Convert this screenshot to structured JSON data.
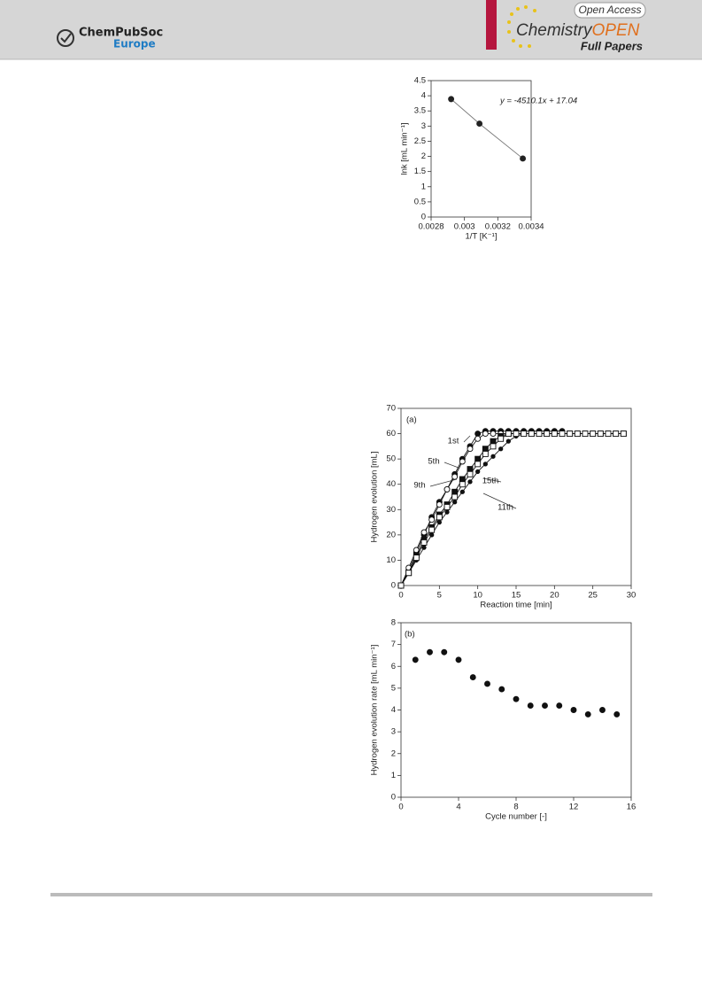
{
  "header": {
    "left_logo": [
      "ChemPubSoc",
      "Europe"
    ],
    "right_logo": {
      "badge": "Open Access",
      "title_a": "Chemistry",
      "title_b": "OPEN",
      "section": "Full Papers"
    }
  },
  "chart_data": [
    {
      "type": "line",
      "x": [
        0.00292,
        0.00309,
        0.00335
      ],
      "values": [
        3.89,
        3.08,
        1.93
      ],
      "color": "#222222",
      "line_color": "#777777",
      "marker": "circle",
      "annotation": "y = -4510.1x + 17.04",
      "x_label": "1/T [K⁻¹]",
      "y_label": "lnk [mL min⁻¹]",
      "xlim": [
        0.0028,
        0.0034
      ],
      "xticks": [
        0.0028,
        0.003,
        0.0032,
        0.0034
      ],
      "ylim": [
        0,
        4.5
      ],
      "yticks": [
        0,
        0.5,
        1,
        1.5,
        2,
        2.5,
        3,
        3.5,
        4,
        4.5
      ]
    },
    {
      "type": "line",
      "annotation": "(a)",
      "x_label": "Reaction time [min]",
      "y_label": "Hydrogen evolution [mL]",
      "x": [
        0,
        1,
        2,
        3,
        4,
        5,
        6,
        7,
        8,
        9,
        10,
        11,
        12,
        13,
        14,
        15,
        16,
        17,
        18,
        19,
        20,
        21,
        22,
        23,
        24,
        25,
        26,
        27,
        28,
        29
      ],
      "series": [
        {
          "name": "1st",
          "color": "#111111",
          "marker": "circle",
          "values": [
            0,
            6,
            13,
            20,
            27,
            33,
            38,
            44,
            50,
            55,
            60,
            61,
            61,
            61,
            61,
            61,
            61,
            61,
            61,
            61,
            61,
            61,
            null,
            null,
            null,
            null,
            null,
            null,
            null,
            null
          ]
        },
        {
          "name": "5th",
          "color": "#111111",
          "marker": "open-circle",
          "values": [
            0,
            7,
            14,
            21,
            26,
            32,
            38,
            43,
            49,
            54,
            58,
            60,
            60,
            60,
            60,
            60,
            60,
            60,
            60,
            60,
            60,
            60,
            null,
            null,
            null,
            null,
            null,
            null,
            null,
            null
          ]
        },
        {
          "name": "9th",
          "color": "#111111",
          "marker": "square",
          "values": [
            0,
            5,
            12,
            18,
            23,
            28,
            32,
            37,
            42,
            46,
            50,
            54,
            57,
            59,
            60,
            60,
            60,
            60,
            60,
            60,
            60,
            60,
            60,
            60,
            60,
            60,
            60,
            60,
            60,
            60
          ]
        },
        {
          "name": "11th",
          "color": "#111111",
          "marker": "dot",
          "values": [
            0,
            5,
            10,
            15,
            20,
            25,
            29,
            33,
            37,
            41,
            45,
            48,
            51,
            54,
            57,
            59,
            60,
            60,
            60,
            60,
            60,
            60,
            60,
            60,
            60,
            60,
            60,
            60,
            60,
            60
          ]
        },
        {
          "name": "15th",
          "color": "#111111",
          "marker": "open-square",
          "values": [
            0,
            5,
            11,
            17,
            22,
            27,
            31,
            35,
            40,
            44,
            48,
            52,
            55,
            58,
            60,
            60,
            60,
            60,
            60,
            60,
            60,
            60,
            60,
            60,
            60,
            60,
            60,
            60,
            60,
            60
          ]
        }
      ],
      "xlim": [
        0,
        30
      ],
      "xticks": [
        0,
        5,
        10,
        15,
        20,
        25,
        30
      ],
      "ylim": [
        0,
        70
      ],
      "yticks": [
        0,
        10,
        20,
        30,
        40,
        50,
        60,
        70
      ]
    },
    {
      "type": "scatter",
      "annotation": "(b)",
      "x_label": "Cycle number [-]",
      "y_label": "Hydrogen evolution rate [mL min⁻¹]",
      "x": [
        1,
        2,
        3,
        4,
        5,
        6,
        7,
        8,
        9,
        10,
        11,
        12,
        13,
        14,
        15
      ],
      "values": [
        6.3,
        6.65,
        6.65,
        6.3,
        5.5,
        5.2,
        4.95,
        4.5,
        4.2,
        4.2,
        4.2,
        4.0,
        3.8,
        4.0,
        3.8
      ],
      "color": "#111111",
      "marker": "circle",
      "xlim": [
        0,
        16
      ],
      "xticks": [
        0,
        4,
        8,
        12,
        16
      ],
      "ylim": [
        0,
        8
      ],
      "yticks": [
        0,
        1,
        2,
        3,
        4,
        5,
        6,
        7,
        8
      ]
    }
  ]
}
